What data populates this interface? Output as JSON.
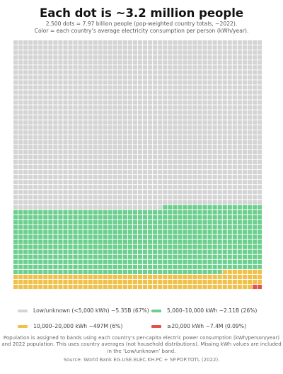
{
  "header": {
    "title": "Each dot is ~3.2 million people",
    "subtitle_line1": "2,500 dots = 7.97 billion people (pop-weighted country totals, ~2022).",
    "subtitle_line2": "Color = each country’s average electricity consumption per person (kWh/year)."
  },
  "chart_data": {
    "type": "waffle",
    "title": "Each dot is ~3.2 million people",
    "columns": 50,
    "rows": 50,
    "total_dots": 2500,
    "fill_order": "bottom-to-top, right-to-left",
    "categories": [
      {
        "label": "≥20,000 kWh  ~7.4M  (0.09%)",
        "dots": 2,
        "color": "#e2534b"
      },
      {
        "label": "10,000–20,000 kWh  ~497M  (6%)",
        "dots": 156,
        "color": "#f0c04a"
      },
      {
        "label": "5,000–10,000 kWh  ~2.11B  (26%)",
        "dots": 662,
        "color": "#6ccf8e"
      },
      {
        "label": "Low/unknown (<5,000 kWh)  ~5.35B  (67%)",
        "dots": 1680,
        "color": "#d4d4d4"
      }
    ]
  },
  "legend": {
    "low_label": "Low/unknown (<5,000 kWh)  ~5.35B  (67%)",
    "mid_label": "5,000–10,000 kWh  ~2.11B  (26%)",
    "high_label": "10,000–20,000 kWh  ~497M  (6%)",
    "top_label": "≥20,000 kWh  ~7.4M  (0.09%)",
    "colors": {
      "low": "#d4d4d4",
      "mid": "#6ccf8e",
      "high": "#f0c04a",
      "top": "#e2534b"
    }
  },
  "footer": {
    "note_line1": "Population is assigned to bands using each country’s per-capita electric power consumption (kWh/person/year)",
    "note_line2": "and 2022 population. This uses country averages (not household distributions). Missing kWh values are included",
    "note_line3": "in the ‘Low/unknown’ band.",
    "source": "Source: World Bank EG.USE.ELEC.KH.PC + SP.POP.TOTL (2022)."
  }
}
